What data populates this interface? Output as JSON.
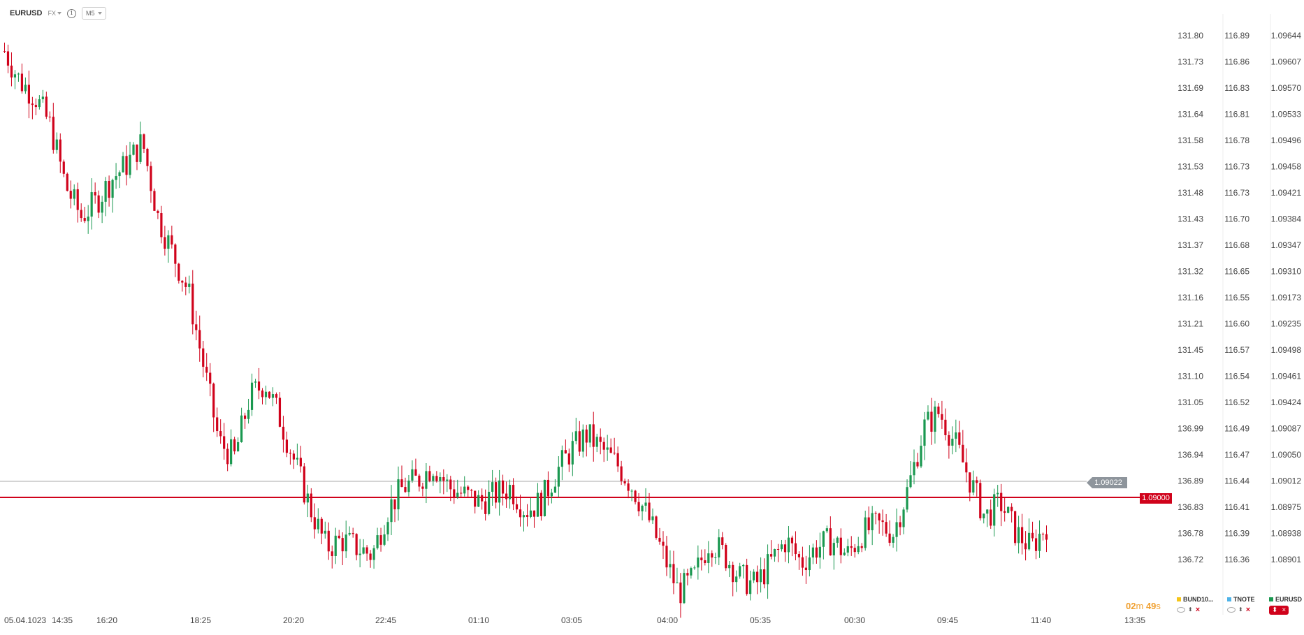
{
  "header": {
    "symbol": "EURUSD",
    "market": "FX",
    "info_icon": "info-icon",
    "timeframe": "M5"
  },
  "axes": {
    "col1": [
      "131.80",
      "131.73",
      "131.69",
      "131.64",
      "131.58",
      "131.53",
      "131.48",
      "131.43",
      "131.37",
      "131.32",
      "131.16",
      "131.21",
      "131.45",
      "131.10",
      "131.05",
      "136.99",
      "136.94",
      "136.89",
      "136.83",
      "136.78",
      "136.72"
    ],
    "col2": [
      "116.89",
      "116.86",
      "116.83",
      "116.81",
      "116.78",
      "116.73",
      "116.73",
      "116.70",
      "116.68",
      "116.65",
      "116.55",
      "116.60",
      "116.57",
      "116.54",
      "116.52",
      "116.49",
      "116.47",
      "116.44",
      "116.41",
      "116.39",
      "116.36"
    ],
    "col3": [
      "1.09644",
      "1.09607",
      "1.09570",
      "1.09533",
      "1.09496",
      "1.09458",
      "1.09421",
      "1.09384",
      "1.09347",
      "1.09310",
      "1.09173",
      "1.09235",
      "1.09498",
      "1.09461",
      "1.09424",
      "1.09087",
      "1.09050",
      "1.09012",
      "1.08975",
      "1.08938",
      "1.08901"
    ]
  },
  "time_labels": [
    "05.04.1023",
    "14:35",
    "16:20",
    "18:25",
    "20:20",
    "22:45",
    "01:10",
    "03:05",
    "04:00",
    "05:35",
    "00:30",
    "09:45",
    "11:40",
    "13:35"
  ],
  "current_price": "1.09022",
  "level_price": "1.09000",
  "timer": {
    "minutes": "02",
    "m": "m",
    "seconds": "49",
    "s": "s"
  },
  "legend": [
    {
      "label": "BUND10...",
      "color": "#f5c518"
    },
    {
      "label": "TNOTE",
      "color": "#4fb3e8"
    },
    {
      "label": "EURUSD",
      "color": "#1a9850"
    }
  ],
  "colors": {
    "up": "#1a9850",
    "down": "#d0021b",
    "level": "#d0021b",
    "current": "#8e959c"
  },
  "chart_data": {
    "type": "candlestick",
    "ylim": [
      1.0888,
      1.0966
    ],
    "close_path": [
      1.0962,
      1.0958,
      1.0956,
      1.0952,
      1.0944,
      1.094,
      1.0942,
      1.0945,
      1.0947,
      1.095,
      1.094,
      1.0935,
      1.093,
      1.092,
      1.091,
      1.0908,
      1.0916,
      1.0918,
      1.0913,
      1.0907,
      1.0901,
      1.0896,
      1.0897,
      1.0896,
      1.0895,
      1.0901,
      1.0904,
      1.0905,
      1.0907,
      1.0904,
      1.0903,
      1.0902,
      1.0903,
      1.0904,
      1.0901,
      1.0902,
      1.0906,
      1.0909,
      1.0911,
      1.0909,
      1.0907,
      1.0904,
      1.09,
      1.0895,
      1.089,
      1.0892,
      1.0897,
      1.0895,
      1.0892,
      1.0891,
      1.0894,
      1.0897,
      1.0894,
      1.0896,
      1.0897,
      1.0895,
      1.0898,
      1.0899,
      1.0898,
      1.0904,
      1.0912,
      1.0914,
      1.091,
      1.0905,
      1.09,
      1.0902,
      1.0898,
      1.0896,
      1.0899
    ]
  }
}
